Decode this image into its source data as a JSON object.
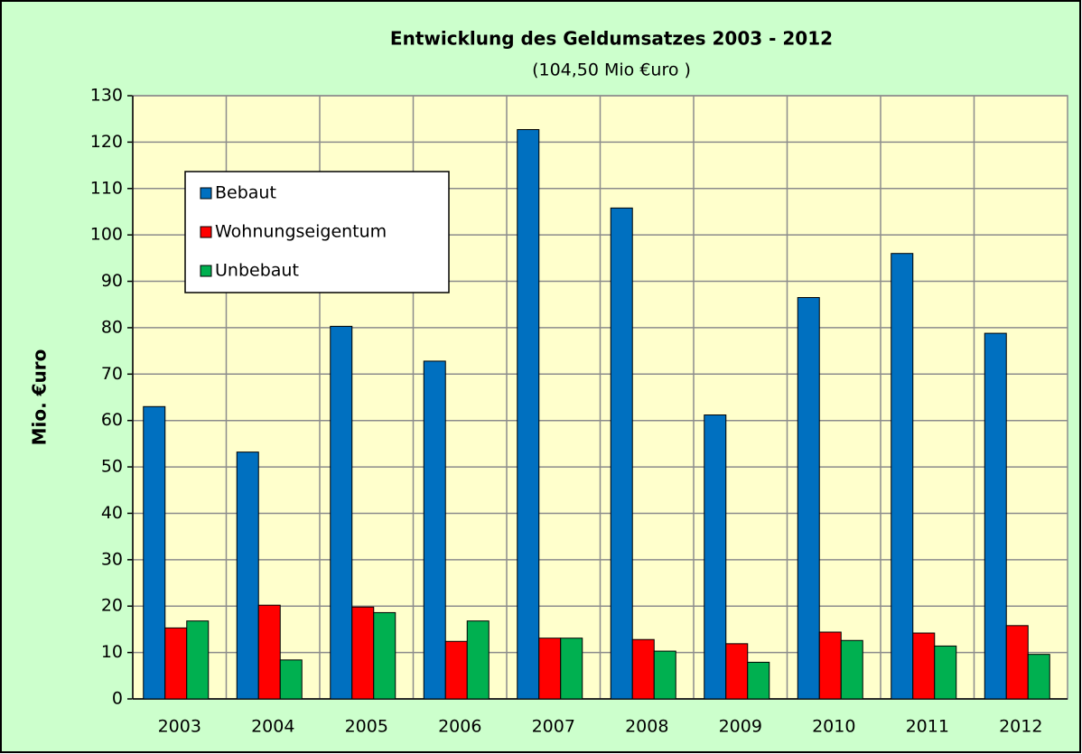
{
  "chart_data": {
    "type": "bar",
    "title": "Entwicklung des Geldumsatzes 2003 - 2012",
    "subtitle": "(104,50 Mio €uro )",
    "y_label": "Mio. €uro",
    "categories": [
      "2003",
      "2004",
      "2005",
      "2006",
      "2007",
      "2008",
      "2009",
      "2010",
      "2011",
      "2012"
    ],
    "series": [
      {
        "name": "Bebaut",
        "color": "#0070c0",
        "values": [
          63.0,
          53.2,
          80.3,
          72.8,
          122.7,
          105.8,
          61.2,
          86.5,
          96.0,
          78.8
        ]
      },
      {
        "name": "Wohnungseigentum",
        "color": "#ff0000",
        "values": [
          15.3,
          20.2,
          19.8,
          12.4,
          13.1,
          12.8,
          11.9,
          14.4,
          14.2,
          15.8
        ]
      },
      {
        "name": "Unbebaut",
        "color": "#00b050",
        "values": [
          16.8,
          8.4,
          18.6,
          16.8,
          13.1,
          10.3,
          7.9,
          12.6,
          11.4,
          9.6
        ]
      }
    ],
    "ylim": [
      0,
      130
    ],
    "yticks": [
      0,
      10,
      20,
      30,
      40,
      50,
      60,
      70,
      80,
      90,
      100,
      110,
      120,
      130
    ],
    "grid": true,
    "legend": "upper left"
  }
}
